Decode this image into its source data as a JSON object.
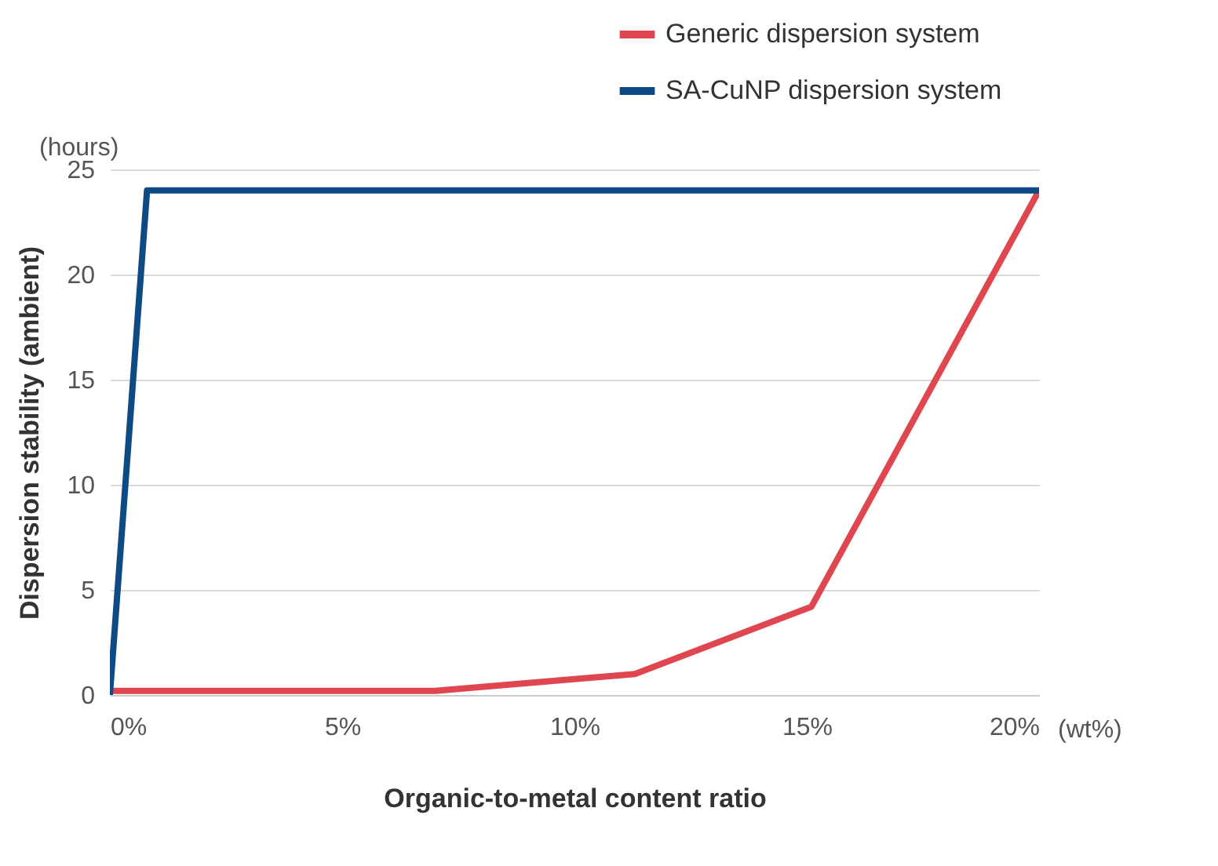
{
  "chart_data": {
    "type": "line",
    "xlabel": "Organic-to-metal content ratio",
    "ylabel": "Dispersion stability (ambient)",
    "annotations": [
      "(hours)",
      "(wt%)"
    ],
    "xlim": [
      0,
      20
    ],
    "xticks": [
      {
        "value": 0,
        "label": "0%"
      },
      {
        "value": 5,
        "label": "5%"
      },
      {
        "value": 10,
        "label": "10%"
      },
      {
        "value": 15,
        "label": "15%"
      },
      {
        "value": 20,
        "label": "20%"
      }
    ],
    "ylim": [
      0,
      25
    ],
    "yticks": [
      0,
      5,
      10,
      15,
      20,
      25
    ],
    "grid": "y",
    "legend": "top right",
    "line_style": "solid",
    "series": [
      {
        "name": "Generic dispersion system",
        "color": "#e0464f",
        "x": [
          0,
          7,
          11.3,
          15.1,
          20
        ],
        "values": [
          0.2,
          0.2,
          1.0,
          4.2,
          24
        ]
      },
      {
        "name": "SA-CuNP dispersion system",
        "color": "#0d4a86",
        "x": [
          0,
          0.8,
          20
        ],
        "values": [
          0,
          24,
          24
        ]
      }
    ]
  }
}
